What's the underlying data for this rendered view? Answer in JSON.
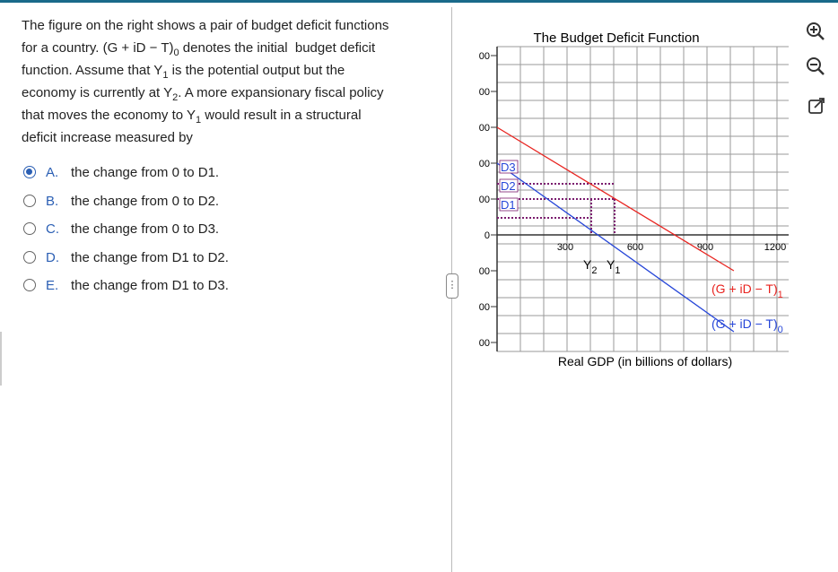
{
  "question": {
    "lines": [
      [
        "The figure on the right shows a pair of budget deficit functions"
      ],
      [
        "for a country. (G + iD − T)",
        "0",
        " denotes the initial  budget deficit"
      ],
      [
        "function. Assume that Y",
        "1",
        " is the potential output but the"
      ],
      [
        "economy is currently at Y",
        "2",
        ". A more expansionary fiscal policy"
      ],
      [
        "that moves the economy to Y",
        "1",
        " would result in a structural"
      ],
      [
        "deficit increase measured by"
      ]
    ]
  },
  "options": [
    {
      "letter": "A.",
      "text": "the change from 0 to D1.",
      "selected": true
    },
    {
      "letter": "B.",
      "text": "the change from 0 to D2.",
      "selected": false
    },
    {
      "letter": "C.",
      "text": "the change from 0 to D3.",
      "selected": false
    },
    {
      "letter": "D.",
      "text": "the change from D1 to D2.",
      "selected": false
    },
    {
      "letter": "E.",
      "text": "the change from D1 to D3.",
      "selected": false
    }
  ],
  "chart_data": {
    "type": "line",
    "title": "The Budget Deficit Function",
    "x_label": "Real GDP (in billions of dollars)",
    "xlim": [
      0,
      1250
    ],
    "ylim": [
      -325,
      525
    ],
    "xticks": [
      300,
      600,
      900,
      1200
    ],
    "yticks": [
      {
        "value": 500,
        "label": "00"
      },
      {
        "value": 400,
        "label": "00"
      },
      {
        "value": 300,
        "label": "00"
      },
      {
        "value": 200,
        "label": "00"
      },
      {
        "value": 100,
        "label": "00"
      },
      0,
      {
        "value": -100,
        "label": "00"
      },
      {
        "value": -200,
        "label": "00"
      },
      {
        "value": -300,
        "label": "00"
      }
    ],
    "series": [
      {
        "name": "(G + iD − T)",
        "name_sub": "1",
        "color": "#e8231f",
        "x": [
          0,
          1015
        ],
        "values": [
          300,
          -100
        ]
      },
      {
        "name": "(G + iD − T)",
        "name_sub": "0",
        "color": "#2646d8",
        "x": [
          0,
          1015
        ],
        "values": [
          200,
          -270
        ]
      }
    ],
    "annotations": {
      "d3": "D3",
      "d2": "D2",
      "d1": "D1",
      "y2": "Y",
      "y2_sub": "2",
      "y1": "Y",
      "y1_sub": "1"
    }
  }
}
